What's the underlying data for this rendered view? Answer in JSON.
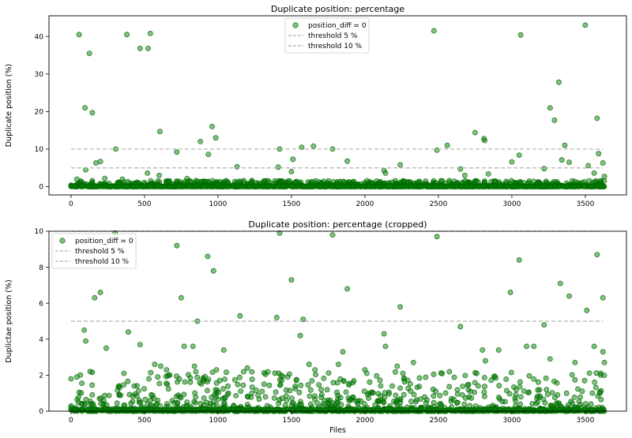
{
  "chart_data": [
    {
      "type": "scatter",
      "title": "Duplicate position: percentage",
      "xlabel": "",
      "ylabel": "Duplicate position (%)",
      "xlim": [
        -150,
        3780
      ],
      "ylim": [
        -2.2,
        45.5
      ],
      "xticks": [
        0,
        500,
        1000,
        1500,
        2000,
        2500,
        3000,
        3500
      ],
      "yticks": [
        0,
        10,
        20,
        30,
        40
      ],
      "grid": false,
      "legend": {
        "placement": "top-center",
        "entries": [
          "position_diff = 0",
          "threshold 5 %",
          "threshold 10 %"
        ]
      },
      "series": [
        {
          "name": "position_diff = 0",
          "kind": "points",
          "color": "#008000",
          "points": [
            [
              55,
              40.5
            ],
            [
              95,
              21
            ],
            [
              125,
              35.5
            ],
            [
              145,
              19.7
            ],
            [
              170,
              6.3
            ],
            [
              200,
              6.7
            ],
            [
              305,
              10
            ],
            [
              380,
              40.5
            ],
            [
              470,
              36.8
            ],
            [
              525,
              36.8
            ],
            [
              540,
              40.8
            ],
            [
              605,
              14.7
            ],
            [
              720,
              9.2
            ],
            [
              880,
              12
            ],
            [
              935,
              8.6
            ],
            [
              960,
              16
            ],
            [
              985,
              13
            ],
            [
              1420,
              10
            ],
            [
              1510,
              7.3
            ],
            [
              1570,
              10.5
            ],
            [
              1650,
              10.8
            ],
            [
              1780,
              10
            ],
            [
              1880,
              6.8
            ],
            [
              2240,
              5.8
            ],
            [
              2470,
              41.5
            ],
            [
              2490,
              9.7
            ],
            [
              2560,
              11
            ],
            [
              2650,
              4.7
            ],
            [
              2750,
              14.4
            ],
            [
              2810,
              12.8
            ],
            [
              2815,
              12.3
            ],
            [
              3060,
              40.4
            ],
            [
              3050,
              8.4
            ],
            [
              3260,
              21
            ],
            [
              3290,
              17.7
            ],
            [
              3320,
              27.8
            ],
            [
              3360,
              11
            ],
            [
              3390,
              6.5
            ],
            [
              3500,
              43
            ],
            [
              3580,
              18.2
            ],
            [
              3590,
              8.8
            ],
            [
              3620,
              6.3
            ],
            [
              3000,
              6.6
            ],
            [
              3340,
              7.1
            ],
            [
              3520,
              5.6
            ],
            [
              40,
              2
            ],
            [
              100,
              4.5
            ],
            [
              230,
              2.2
            ],
            [
              350,
              2
            ],
            [
              520,
              3.6
            ],
            [
              600,
              3
            ],
            [
              790,
              2.2
            ],
            [
              1130,
              5.3
            ],
            [
              1410,
              5.2
            ],
            [
              1500,
              4
            ],
            [
              2130,
              4.3
            ],
            [
              2140,
              3.6
            ],
            [
              2680,
              3
            ],
            [
              2840,
              3.4
            ],
            [
              3220,
              4.8
            ],
            [
              3560,
              3.6
            ],
            [
              3630,
              2.7
            ]
          ]
        },
        {
          "name": "threshold 5 %",
          "kind": "line",
          "color": "#b0b0b0",
          "x": [
            0,
            3620
          ],
          "y": [
            5,
            5
          ]
        },
        {
          "name": "threshold 10 %",
          "kind": "line",
          "color": "#b0b0b0",
          "x": [
            0,
            3620
          ],
          "y": [
            10,
            10
          ]
        }
      ]
    },
    {
      "type": "scatter",
      "title": "Duplicate position: percentage (cropped)",
      "xlabel": "Files",
      "ylabel": "Duplictae position (%)",
      "xlim": [
        -150,
        3780
      ],
      "ylim": [
        0,
        10
      ],
      "xticks": [
        0,
        500,
        1000,
        1500,
        2000,
        2500,
        3000,
        3500
      ],
      "yticks": [
        0,
        2,
        4,
        6,
        8,
        10
      ],
      "grid": false,
      "legend": {
        "placement": "top-left",
        "entries": [
          "position_diff = 0",
          "threshold 5 %",
          "threshold 10 %"
        ]
      },
      "series": [
        {
          "name": "position_diff = 0",
          "kind": "points",
          "color": "#008000",
          "points": [
            [
              0,
              1.8
            ],
            [
              40,
              1.9
            ],
            [
              90,
              4.5
            ],
            [
              100,
              3.9
            ],
            [
              130,
              2.2
            ],
            [
              160,
              6.3
            ],
            [
              200,
              6.6
            ],
            [
              240,
              3.5
            ],
            [
              300,
              9.9
            ],
            [
              360,
              2.1
            ],
            [
              390,
              4.4
            ],
            [
              430,
              1.4
            ],
            [
              470,
              3.7
            ],
            [
              530,
              1.8
            ],
            [
              570,
              2.6
            ],
            [
              610,
              2.5
            ],
            [
              650,
              2.3
            ],
            [
              720,
              9.2
            ],
            [
              750,
              6.3
            ],
            [
              770,
              3.6
            ],
            [
              830,
              3.6
            ],
            [
              840,
              2.5
            ],
            [
              860,
              5
            ],
            [
              930,
              8.6
            ],
            [
              970,
              7.8
            ],
            [
              990,
              2.3
            ],
            [
              1040,
              3.4
            ],
            [
              1150,
              5.3
            ],
            [
              1200,
              2.4
            ],
            [
              1400,
              5.2
            ],
            [
              1420,
              9.9
            ],
            [
              1500,
              7.3
            ],
            [
              1560,
              4.2
            ],
            [
              1580,
              5.1
            ],
            [
              1620,
              2.6
            ],
            [
              1660,
              2.3
            ],
            [
              1780,
              9.8
            ],
            [
              1820,
              2.6
            ],
            [
              1850,
              3.3
            ],
            [
              1880,
              6.8
            ],
            [
              2000,
              2.3
            ],
            [
              2130,
              4.3
            ],
            [
              2140,
              3.6
            ],
            [
              2220,
              2.5
            ],
            [
              2240,
              5.8
            ],
            [
              2330,
              2.7
            ],
            [
              2490,
              9.7
            ],
            [
              2650,
              4.7
            ],
            [
              2800,
              3.4
            ],
            [
              2820,
              2.8
            ],
            [
              2910,
              3.4
            ],
            [
              2990,
              6.6
            ],
            [
              3050,
              8.4
            ],
            [
              3100,
              3.6
            ],
            [
              3150,
              3.6
            ],
            [
              3220,
              4.8
            ],
            [
              3260,
              2.9
            ],
            [
              3330,
              7.1
            ],
            [
              3390,
              6.4
            ],
            [
              3430,
              2.7
            ],
            [
              3510,
              5.6
            ],
            [
              3560,
              3.6
            ],
            [
              3580,
              8.7
            ],
            [
              3620,
              6.3
            ],
            [
              3620,
              3.3
            ],
            [
              3630,
              2.7
            ],
            [
              3600,
              1
            ]
          ]
        },
        {
          "name": "threshold 5 %",
          "kind": "line",
          "color": "#b0b0b0",
          "x": [
            0,
            3620
          ],
          "y": [
            5,
            5
          ]
        },
        {
          "name": "threshold 10 %",
          "kind": "line",
          "color": "#b0b0b0",
          "x": [
            0,
            3620
          ],
          "y": [
            10,
            10
          ]
        }
      ]
    }
  ]
}
